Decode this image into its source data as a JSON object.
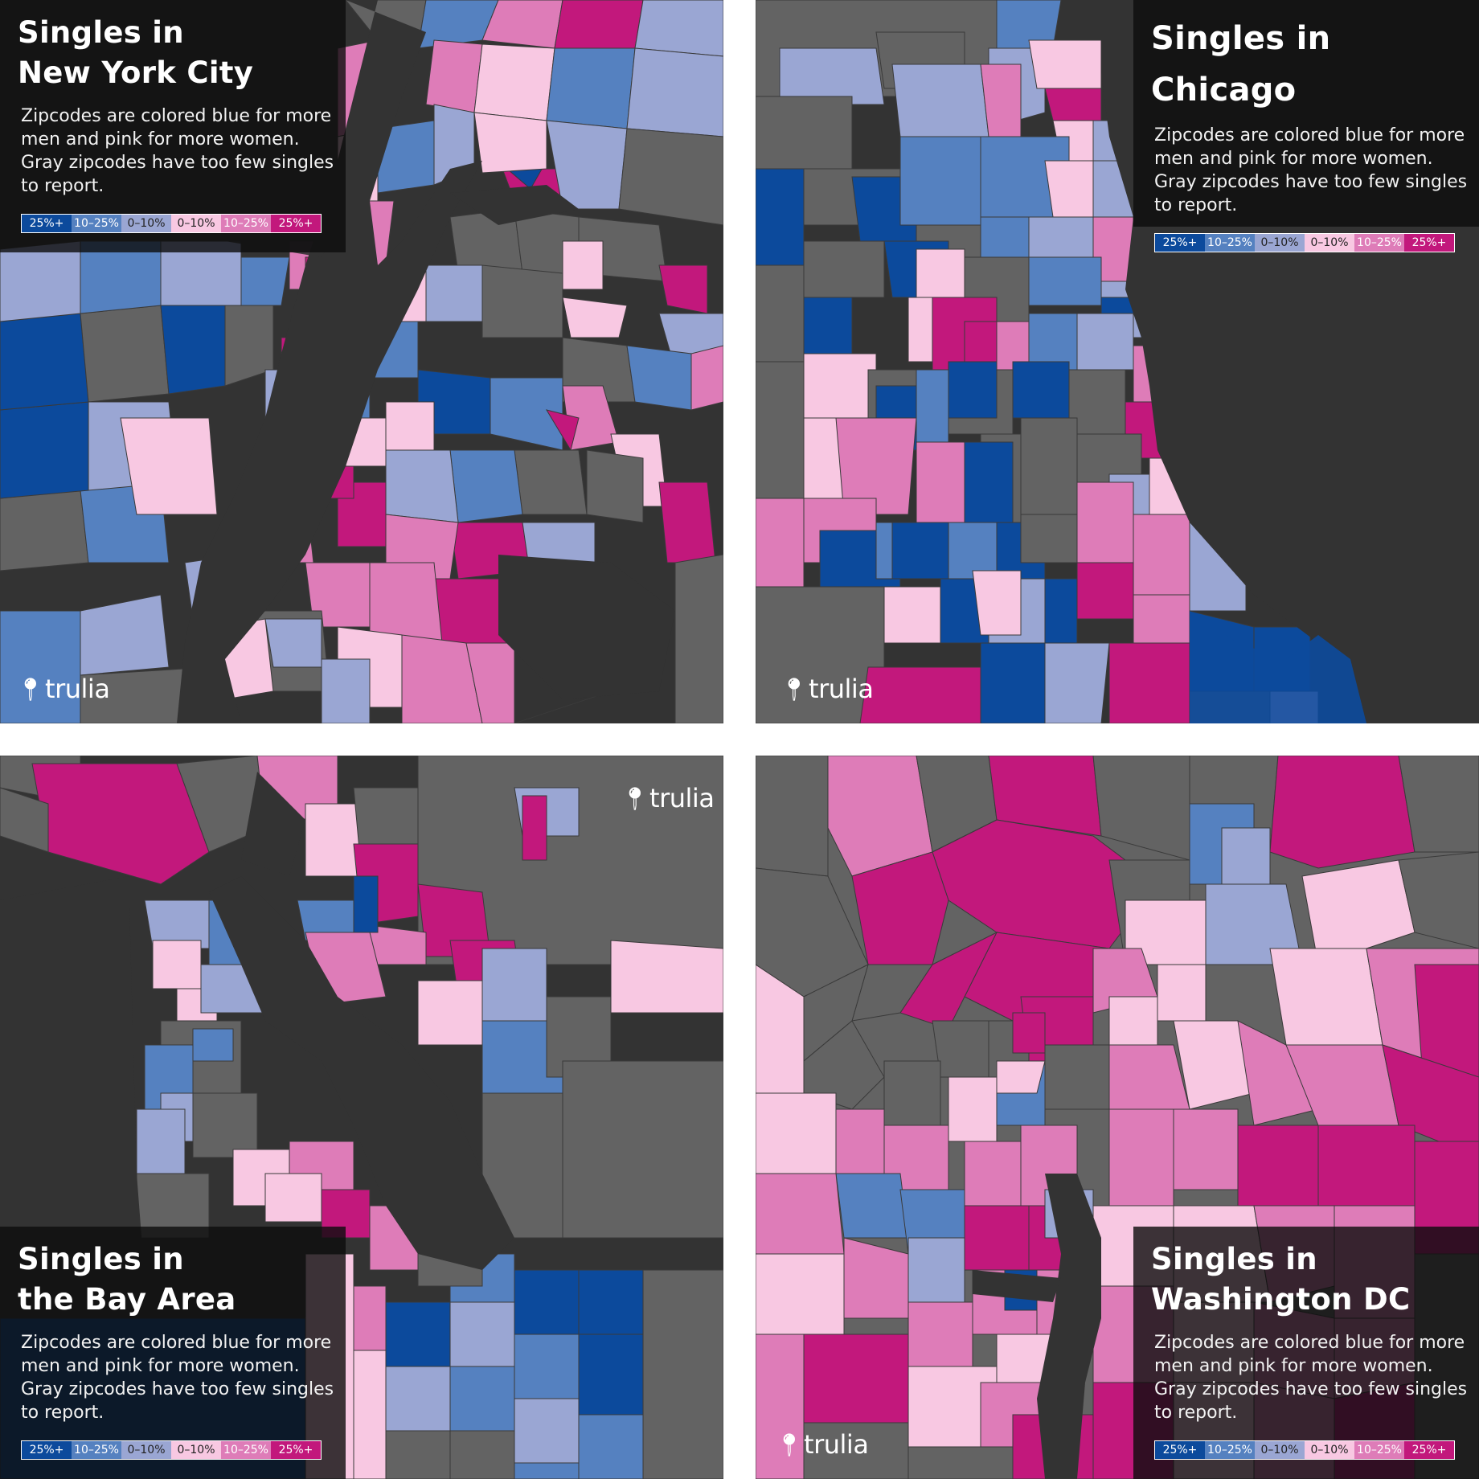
{
  "legend": {
    "colors": [
      "#0c4a9c",
      "#5581c0",
      "#9aa6d3",
      "#f8c8e2",
      "#de7cb8",
      "#c2187c"
    ],
    "labels": [
      "25%+",
      "10–25%",
      "0–10%",
      "0–10%",
      "10–25%",
      "25%+"
    ]
  },
  "description": "Zipcodes are colored blue for more men and pink for more women. Gray zipcodes have too few singles to report.",
  "logo_text": "trulia",
  "panels": {
    "nyc": {
      "title_line1": "Singles in",
      "title_line2": "New York City"
    },
    "chicago": {
      "title_line1": "Singles in Chicago"
    },
    "bay": {
      "title_line1": "Singles in",
      "title_line2": "the Bay Area"
    },
    "dc": {
      "title_line1": "Singles in",
      "title_line2": "Washington DC"
    }
  },
  "colors": {
    "water": "#333333",
    "no_data": "#636363",
    "border": "#3a3a3a",
    "separator": "#ffffff"
  }
}
